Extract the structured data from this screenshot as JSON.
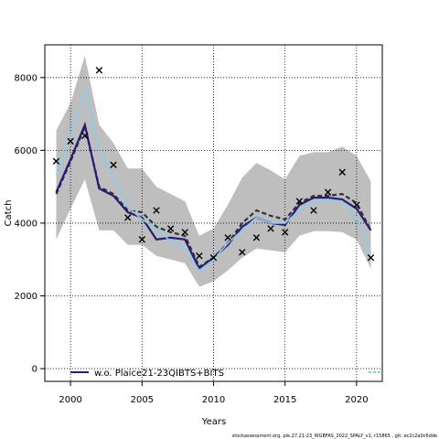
{
  "chart_data": {
    "type": "line",
    "xlabel": "Years",
    "ylabel": "Catch",
    "xlim": [
      1998.2,
      2021.8
    ],
    "ylim": [
      -350,
      8900
    ],
    "x_ticks": [
      2000,
      2005,
      2010,
      2015,
      2020
    ],
    "y_ticks": [
      0,
      2000,
      4000,
      6000,
      8000
    ],
    "grid": true,
    "legend_position": "bottom-left",
    "years": [
      1999,
      2000,
      2001,
      2002,
      2003,
      2004,
      2005,
      2006,
      2007,
      2008,
      2009,
      2010,
      2011,
      2012,
      2013,
      2014,
      2015,
      2016,
      2017,
      2018,
      2019,
      2020,
      2021
    ],
    "series": [
      {
        "name": "w.o. Plaice21-23QIBTS+BITS",
        "color": "#2b1a7a",
        "values": [
          4850,
          5750,
          6700,
          4950,
          4750,
          4300,
          4150,
          3550,
          3600,
          3550,
          2750,
          3050,
          3400,
          3900,
          4150,
          4000,
          3950,
          4500,
          4700,
          4700,
          4650,
          4400,
          3800
        ]
      }
    ],
    "reference_line": {
      "color": "#333333",
      "values": [
        4800,
        5700,
        6650,
        5000,
        4800,
        4350,
        4300,
        3900,
        3750,
        3650,
        2800,
        3050,
        3450,
        4000,
        4350,
        4200,
        4100,
        4550,
        4750,
        4750,
        4800,
        4550,
        3800
      ]
    },
    "fitted_line": {
      "color": "#87ceeb",
      "values": [
        5300,
        6400,
        7650,
        6000,
        5250,
        4450,
        4100,
        3850,
        3500,
        3300,
        2700,
        3000,
        3450,
        3800,
        4150,
        4000,
        4000,
        4350,
        4550,
        4650,
        4600,
        4150,
        3200
      ]
    },
    "confidence_band": {
      "color": "#bebebe",
      "lower": [
        3550,
        4400,
        5200,
        3800,
        3800,
        3400,
        3400,
        3100,
        3000,
        2900,
        2250,
        2400,
        2700,
        3050,
        3300,
        3250,
        3200,
        3650,
        3780,
        3780,
        3750,
        3550,
        2750
      ],
      "upper": [
        6550,
        7300,
        8600,
        6700,
        6200,
        5500,
        5500,
        5000,
        4800,
        4600,
        3650,
        3850,
        4500,
        5250,
        5650,
        5450,
        5200,
        5850,
        5950,
        5950,
        6100,
        5850,
        5150
      ]
    },
    "observations": {
      "marker": "x",
      "x": [
        1999,
        2000,
        2001,
        2002,
        2003,
        2004,
        2005,
        2006,
        2007,
        2008,
        2009,
        2010,
        2011,
        2012,
        2013,
        2014,
        2015,
        2016,
        2017,
        2018,
        2019,
        2020,
        2021
      ],
      "y": [
        5700,
        6250,
        6400,
        8200,
        5600,
        4150,
        3550,
        4350,
        3850,
        3750,
        3100,
        3050,
        3600,
        3200,
        3600,
        3850,
        3750,
        4600,
        4350,
        4850,
        5400,
        4500,
        3050
      ]
    }
  },
  "footer": {
    "text": "stockassessment.org, ple.27.21-23_WGBFAS_2022_SPALY_v1, r15865 , git: ec2c2a0c6dde"
  }
}
